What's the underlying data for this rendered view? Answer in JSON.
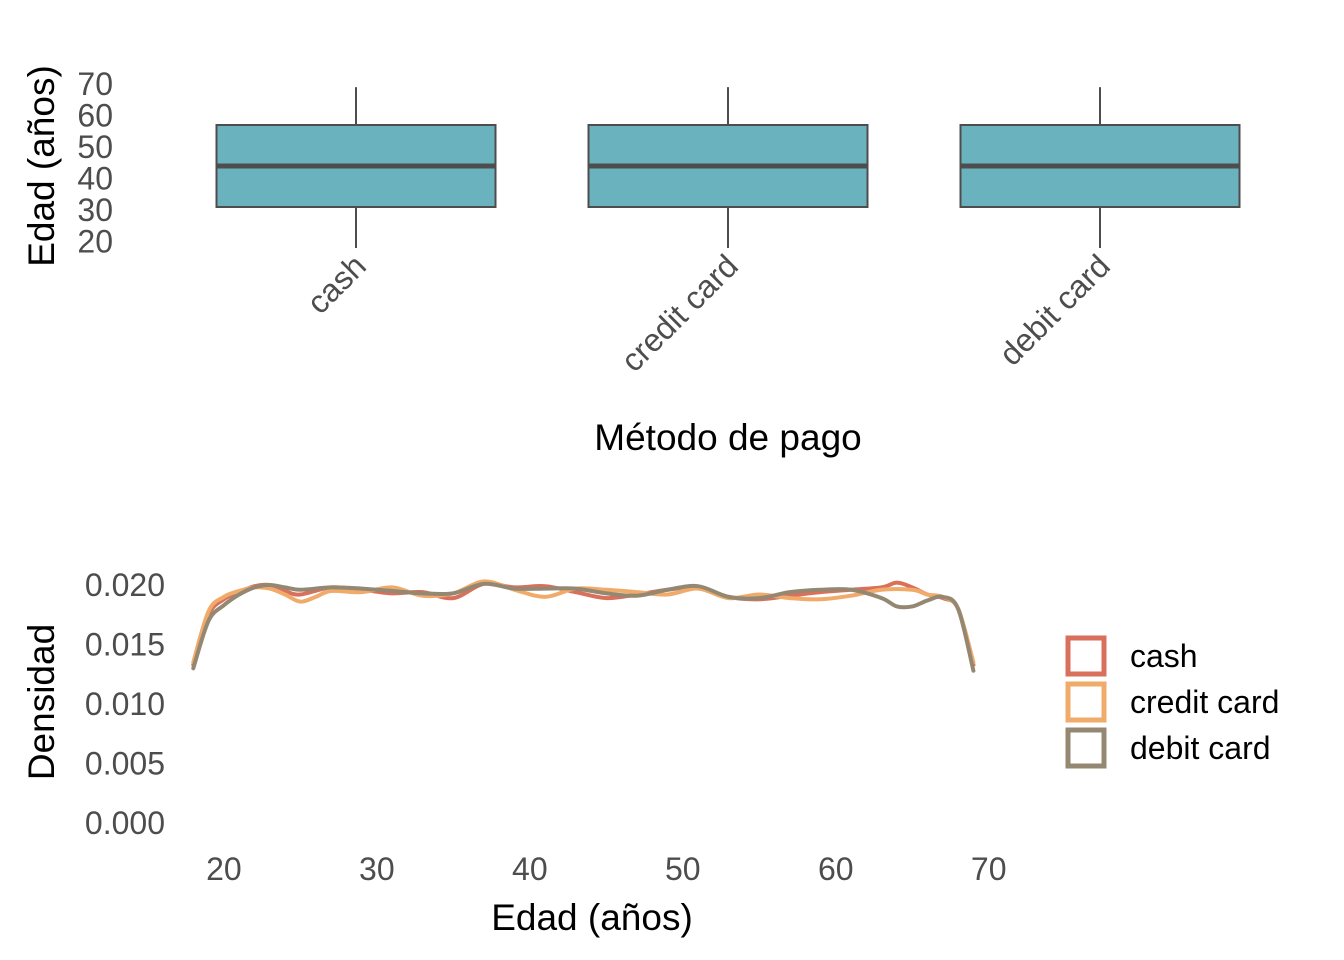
{
  "chart_data": [
    {
      "type": "box",
      "xlabel": "Método de pago",
      "ylabel": "Edad (años)",
      "ylim": [
        18,
        70
      ],
      "yticks": [
        20,
        30,
        40,
        50,
        60,
        70
      ],
      "categories": [
        "cash",
        "credit card",
        "debit card"
      ],
      "boxes": [
        {
          "category": "cash",
          "min": 18,
          "q1": 31,
          "median": 44,
          "q3": 57,
          "max": 69
        },
        {
          "category": "credit card",
          "min": 18,
          "q1": 31,
          "median": 44,
          "q3": 57,
          "max": 69
        },
        {
          "category": "debit card",
          "min": 18,
          "q1": 31,
          "median": 44,
          "q3": 57,
          "max": 69
        }
      ],
      "colors": {
        "fill": "#6ab2be",
        "line": "#4d4d4d"
      },
      "grid": false
    },
    {
      "type": "line",
      "xlabel": "Edad (años)",
      "ylabel": "Densidad",
      "xlim": [
        17,
        71
      ],
      "ylim": [
        0,
        0.02
      ],
      "xticks": [
        20,
        30,
        40,
        50,
        60,
        70
      ],
      "yticks": [
        "0.000",
        "0.005",
        "0.010",
        "0.015",
        "0.020"
      ],
      "legend_position": "right",
      "grid": false,
      "series": [
        {
          "name": "cash",
          "color": "#d9705c",
          "x": [
            18,
            19,
            20,
            21,
            22,
            23,
            24,
            25,
            27,
            29,
            31,
            33,
            35,
            37,
            39,
            41,
            43,
            45,
            47,
            49,
            51,
            53,
            55,
            57,
            59,
            61,
            63,
            64,
            65,
            66,
            67,
            68,
            69
          ],
          "y": [
            0.0133,
            0.0175,
            0.0188,
            0.0194,
            0.0199,
            0.02,
            0.0195,
            0.0192,
            0.0198,
            0.0196,
            0.0193,
            0.0194,
            0.0189,
            0.0201,
            0.0198,
            0.0199,
            0.0194,
            0.0189,
            0.0192,
            0.0196,
            0.0198,
            0.019,
            0.0188,
            0.0191,
            0.0194,
            0.0196,
            0.0198,
            0.0202,
            0.0198,
            0.0192,
            0.0189,
            0.018,
            0.0133
          ]
        },
        {
          "name": "credit card",
          "color": "#f0ab6b",
          "x": [
            18,
            19,
            20,
            21,
            22,
            23,
            24,
            25,
            26,
            27,
            29,
            31,
            33,
            35,
            37,
            39,
            41,
            43,
            45,
            47,
            49,
            51,
            53,
            55,
            57,
            59,
            61,
            63,
            65,
            66,
            67,
            68,
            69
          ],
          "y": [
            0.0135,
            0.0178,
            0.019,
            0.0195,
            0.0198,
            0.0197,
            0.0192,
            0.0186,
            0.019,
            0.0195,
            0.0194,
            0.0198,
            0.0191,
            0.0193,
            0.0203,
            0.0196,
            0.019,
            0.0197,
            0.0196,
            0.0194,
            0.0192,
            0.0197,
            0.0189,
            0.0192,
            0.0189,
            0.0188,
            0.0191,
            0.0196,
            0.0196,
            0.0192,
            0.019,
            0.018,
            0.0135
          ]
        },
        {
          "name": "debit card",
          "color": "#948872",
          "x": [
            18,
            19,
            20,
            21,
            22,
            23,
            24,
            25,
            27,
            29,
            31,
            33,
            35,
            37,
            39,
            41,
            43,
            45,
            47,
            49,
            51,
            53,
            55,
            57,
            59,
            61,
            63,
            64,
            65,
            66,
            67,
            68,
            69
          ],
          "y": [
            0.013,
            0.017,
            0.0183,
            0.0192,
            0.0198,
            0.02,
            0.0198,
            0.0196,
            0.0198,
            0.0197,
            0.0195,
            0.0193,
            0.0193,
            0.0201,
            0.0197,
            0.0197,
            0.0197,
            0.0193,
            0.0191,
            0.0196,
            0.0199,
            0.019,
            0.0189,
            0.0194,
            0.0196,
            0.0196,
            0.0189,
            0.0182,
            0.0182,
            0.0187,
            0.019,
            0.018,
            0.0128
          ]
        }
      ]
    }
  ]
}
